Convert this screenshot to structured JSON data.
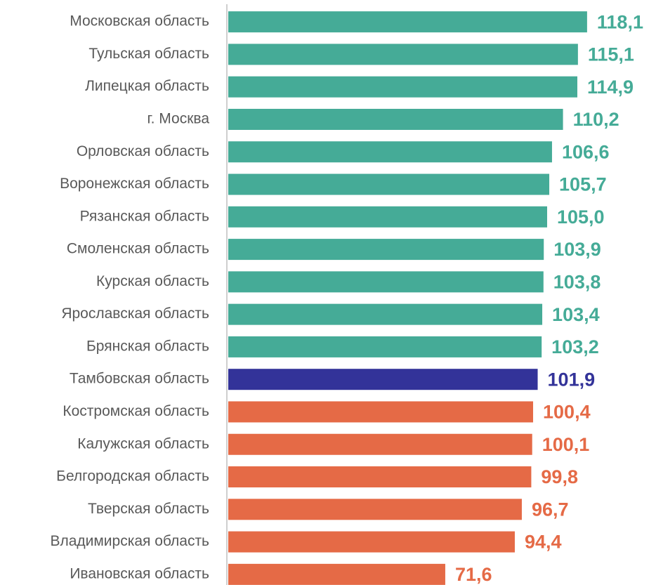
{
  "chart_data": {
    "type": "bar",
    "orientation": "horizontal",
    "categories": [
      "Московская область",
      "Тульская область",
      "Липецкая область",
      "г. Москва",
      "Орловская область",
      "Воронежская область",
      "Рязанская область",
      "Смоленская область",
      "Курская область",
      "Ярославская область",
      "Брянская область",
      "Тамбовская область",
      "Костромская область",
      "Калужская область",
      "Белгородская область",
      "Тверская область",
      "Владимирская область",
      "Ивановская область"
    ],
    "values": [
      118.1,
      115.1,
      114.9,
      110.2,
      106.6,
      105.7,
      105.0,
      103.9,
      103.8,
      103.4,
      103.2,
      101.9,
      100.4,
      100.1,
      99.8,
      96.7,
      94.4,
      71.6
    ],
    "value_labels": [
      "118,1",
      "115,1",
      "114,9",
      "110,2",
      "106,6",
      "105,7",
      "105,0",
      "103,9",
      "103,8",
      "103,4",
      "103,2",
      "101,9",
      "100,4",
      "100,1",
      "99,8",
      "96,7",
      "94,4",
      "71,6"
    ],
    "colors": [
      "#45ab97",
      "#45ab97",
      "#45ab97",
      "#45ab97",
      "#45ab97",
      "#45ab97",
      "#45ab97",
      "#45ab97",
      "#45ab97",
      "#45ab97",
      "#45ab97",
      "#333399",
      "#e56a46",
      "#e56a46",
      "#e56a46",
      "#e56a46",
      "#e56a46",
      "#e56a46"
    ],
    "xlim": [
      0,
      140
    ]
  }
}
